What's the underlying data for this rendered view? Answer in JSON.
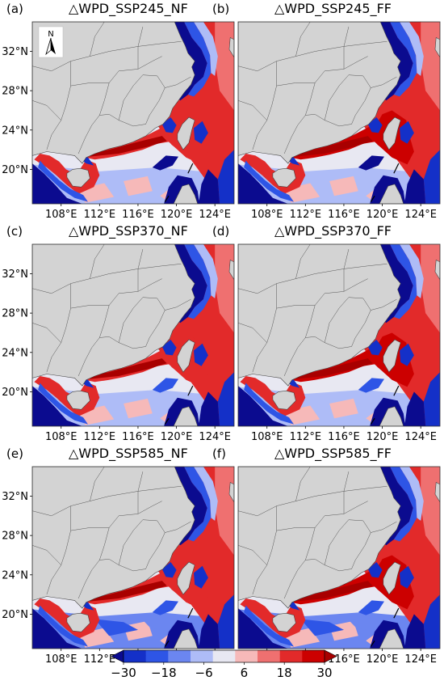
{
  "chart_data": {
    "type": "heatmap",
    "colorbar": {
      "ticks": [
        "−30",
        "−18",
        "−6",
        "6",
        "18",
        "30"
      ],
      "levels": [
        -30,
        -24,
        -18,
        -12,
        -6,
        0,
        6,
        12,
        18,
        24,
        30
      ],
      "colors": [
        "#0b0b8f",
        "#1430c8",
        "#2e55e6",
        "#6b86f0",
        "#aebcf7",
        "#e8e8f2",
        "#f6b9b9",
        "#ef7070",
        "#e22a2a",
        "#cc0000",
        "#a80000"
      ],
      "extend": "both"
    },
    "axes": {
      "xticks": [
        "108°E",
        "112°E",
        "116°E",
        "120°E",
        "124°E"
      ],
      "yticks": [
        "32°N",
        "28°N",
        "24°N",
        "20°N"
      ],
      "lon_range": [
        105,
        126
      ],
      "lat_range": [
        16.5,
        35
      ]
    },
    "land_color": "#d3d3d3",
    "north_arrow": "N",
    "panels": [
      {
        "label": "(a)",
        "title": "△WPD_SSP245_NF",
        "north_arrow": true
      },
      {
        "label": "(b)",
        "title": "△WPD_SSP245_FF",
        "north_arrow": false
      },
      {
        "label": "(c)",
        "title": "△WPD_SSP370_NF",
        "north_arrow": false
      },
      {
        "label": "(d)",
        "title": "△WPD_SSP370_FF",
        "north_arrow": false
      },
      {
        "label": "(e)",
        "title": "△WPD_SSP585_NF",
        "north_arrow": false
      },
      {
        "label": "(f)",
        "title": "△WPD_SSP585_FF",
        "north_arrow": false
      }
    ]
  }
}
